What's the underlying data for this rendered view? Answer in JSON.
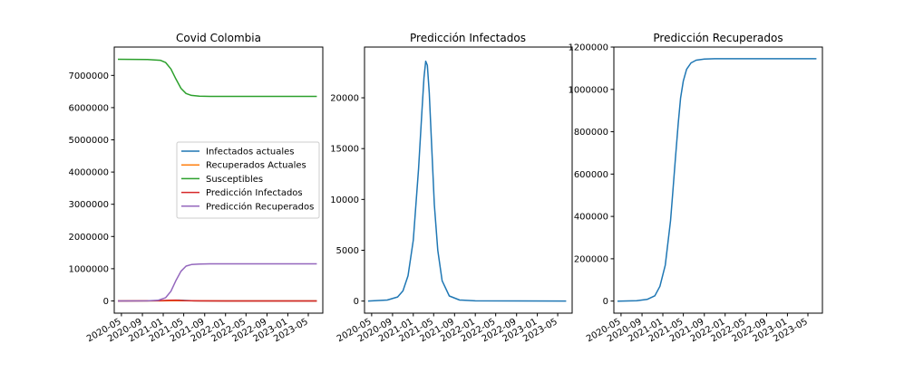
{
  "chart_data": [
    {
      "type": "line",
      "title": "Covid Colombia",
      "xlabel": "",
      "ylabel": "",
      "x_ticks": [
        "2020-05",
        "2020-09",
        "2021-01",
        "2021-05",
        "2021-09",
        "2022-01",
        "2022-05",
        "2022-09",
        "2023-01",
        "2023-05"
      ],
      "y_ticks": [
        "0",
        "1000000",
        "2000000",
        "3000000",
        "4000000",
        "5000000",
        "6000000",
        "7000000"
      ],
      "ylim": [
        -380000,
        7880000
      ],
      "xlim": [
        "2020-03-20",
        "2023-07-25"
      ],
      "grid": false,
      "legend_position": "center-right",
      "series": [
        {
          "name": "Infectados actuales",
          "color": "#1f77b4",
          "points": [
            [
              "2020-04-10",
              0
            ],
            [
              "2021-01-01",
              5000
            ],
            [
              "2021-04-01",
              24000
            ],
            [
              "2021-07-01",
              2000
            ],
            [
              "2022-01-01",
              0
            ],
            [
              "2023-06-20",
              0
            ]
          ]
        },
        {
          "name": "Recuperados Actuales",
          "color": "#ff7f0e",
          "points": [
            [
              "2020-04-10",
              0
            ],
            [
              "2021-01-01",
              3000
            ],
            [
              "2021-04-01",
              10000
            ],
            [
              "2021-07-01",
              2000
            ],
            [
              "2022-01-01",
              0
            ],
            [
              "2023-06-20",
              0
            ]
          ]
        },
        {
          "name": "Susceptibles",
          "color": "#2ca02c",
          "points": [
            [
              "2020-04-10",
              7500000
            ],
            [
              "2020-10-01",
              7495000
            ],
            [
              "2020-12-15",
              7470000
            ],
            [
              "2021-01-15",
              7400000
            ],
            [
              "2021-02-15",
              7200000
            ],
            [
              "2021-03-15",
              6900000
            ],
            [
              "2021-04-15",
              6600000
            ],
            [
              "2021-05-15",
              6440000
            ],
            [
              "2021-06-15",
              6380000
            ],
            [
              "2021-08-01",
              6355000
            ],
            [
              "2021-10-01",
              6350000
            ],
            [
              "2023-06-20",
              6350000
            ]
          ]
        },
        {
          "name": "Predicción Infectados",
          "color": "#d62728",
          "points": [
            [
              "2020-04-10",
              0
            ],
            [
              "2020-12-01",
              5000
            ],
            [
              "2021-02-01",
              20000
            ],
            [
              "2021-03-15",
              24000
            ],
            [
              "2021-05-01",
              10000
            ],
            [
              "2021-08-01",
              1000
            ],
            [
              "2022-01-01",
              0
            ],
            [
              "2023-06-20",
              0
            ]
          ]
        },
        {
          "name": "Predicción Recuperados",
          "color": "#9467bd",
          "points": [
            [
              "2020-04-10",
              0
            ],
            [
              "2020-10-01",
              2000
            ],
            [
              "2020-12-01",
              20000
            ],
            [
              "2021-01-15",
              100000
            ],
            [
              "2021-02-15",
              300000
            ],
            [
              "2021-03-15",
              620000
            ],
            [
              "2021-04-15",
              920000
            ],
            [
              "2021-05-15",
              1080000
            ],
            [
              "2021-06-15",
              1130000
            ],
            [
              "2021-08-01",
              1145000
            ],
            [
              "2021-10-01",
              1150000
            ],
            [
              "2023-06-20",
              1150000
            ]
          ]
        }
      ]
    },
    {
      "type": "line",
      "title": "Predicción Infectados",
      "xlabel": "",
      "ylabel": "",
      "x_ticks": [
        "2020-05",
        "2020-09",
        "2021-01",
        "2021-05",
        "2021-09",
        "2022-01",
        "2022-05",
        "2022-09",
        "2023-01",
        "2023-05"
      ],
      "y_ticks": [
        "0",
        "5000",
        "10000",
        "15000",
        "20000"
      ],
      "ylim": [
        -1190,
        24990
      ],
      "xlim": [
        "2020-03-20",
        "2023-07-25"
      ],
      "grid": false,
      "series": [
        {
          "color": "#1f77b4",
          "points": [
            [
              "2020-04-10",
              0
            ],
            [
              "2020-08-01",
              100
            ],
            [
              "2020-10-01",
              400
            ],
            [
              "2020-11-01",
              1000
            ],
            [
              "2020-12-01",
              2500
            ],
            [
              "2021-01-01",
              6000
            ],
            [
              "2021-02-01",
              13000
            ],
            [
              "2021-02-20",
              18500
            ],
            [
              "2021-03-05",
              22000
            ],
            [
              "2021-03-15",
              23600
            ],
            [
              "2021-03-25",
              23200
            ],
            [
              "2021-04-05",
              20500
            ],
            [
              "2021-04-20",
              15000
            ],
            [
              "2021-05-05",
              9500
            ],
            [
              "2021-05-25",
              5000
            ],
            [
              "2021-06-20",
              2000
            ],
            [
              "2021-08-01",
              500
            ],
            [
              "2021-10-01",
              100
            ],
            [
              "2022-01-01",
              20
            ],
            [
              "2023-06-20",
              0
            ]
          ]
        }
      ]
    },
    {
      "type": "line",
      "title": "Predicción Recuperados",
      "xlabel": "",
      "ylabel": "",
      "x_ticks": [
        "2020-05",
        "2020-09",
        "2021-01",
        "2021-05",
        "2021-09",
        "2022-01",
        "2022-05",
        "2022-09",
        "2023-01",
        "2023-05"
      ],
      "y_ticks": [
        "0",
        "200000",
        "400000",
        "600000",
        "800000",
        "1000000",
        "1200000"
      ],
      "ylim": [
        -57000,
        1200000
      ],
      "xlim": [
        "2020-03-20",
        "2023-07-25"
      ],
      "grid": false,
      "series": [
        {
          "color": "#1f77b4",
          "points": [
            [
              "2020-04-10",
              0
            ],
            [
              "2020-08-01",
              2000
            ],
            [
              "2020-10-01",
              8000
            ],
            [
              "2020-11-15",
              25000
            ],
            [
              "2020-12-15",
              70000
            ],
            [
              "2021-01-15",
              170000
            ],
            [
              "2021-02-15",
              380000
            ],
            [
              "2021-03-01",
              520000
            ],
            [
              "2021-03-15",
              670000
            ],
            [
              "2021-04-01",
              840000
            ],
            [
              "2021-04-15",
              960000
            ],
            [
              "2021-05-01",
              1040000
            ],
            [
              "2021-05-20",
              1095000
            ],
            [
              "2021-06-15",
              1125000
            ],
            [
              "2021-07-15",
              1138000
            ],
            [
              "2021-09-01",
              1143000
            ],
            [
              "2021-11-01",
              1145000
            ],
            [
              "2023-06-20",
              1145000
            ]
          ]
        }
      ]
    }
  ]
}
